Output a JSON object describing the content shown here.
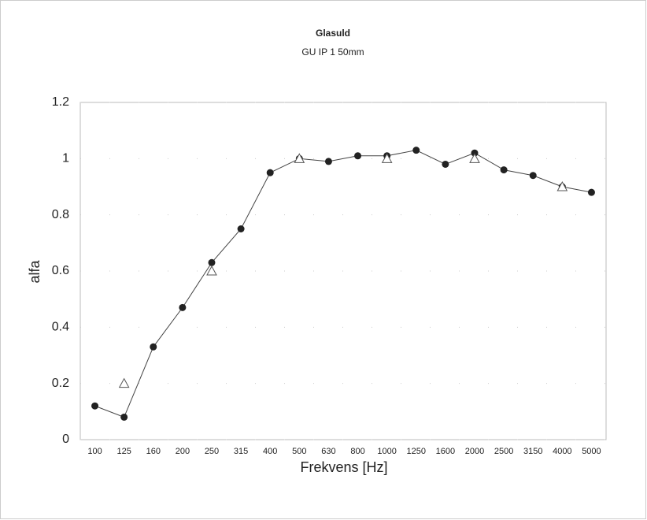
{
  "chart_data": {
    "type": "line",
    "title": "Glasuld",
    "subtitle": "GU IP 1 50mm",
    "x_label": "Frekvens [Hz]",
    "y_label": "alfa",
    "categories": [
      "100",
      "125",
      "160",
      "200",
      "250",
      "315",
      "400",
      "500",
      "630",
      "800",
      "1000",
      "1250",
      "1600",
      "2000",
      "2500",
      "3150",
      "4000",
      "5000"
    ],
    "series": [
      {
        "color": "#222222",
        "marker": "circle",
        "line": true,
        "values": [
          0.12,
          0.08,
          0.33,
          0.47,
          0.63,
          0.75,
          0.95,
          1.0,
          0.99,
          1.01,
          1.01,
          1.03,
          0.98,
          1.02,
          0.96,
          0.94,
          0.9,
          0.88
        ]
      },
      {
        "color": "#555555",
        "marker": "triangle",
        "line": false,
        "values": [
          null,
          0.2,
          null,
          null,
          0.6,
          null,
          null,
          1.0,
          null,
          null,
          1.0,
          null,
          null,
          1.0,
          null,
          null,
          0.9,
          null
        ]
      }
    ],
    "ylim": [
      0,
      1.2
    ],
    "yticks": [
      0,
      0.2,
      0.4,
      0.6,
      0.8,
      1,
      1.2
    ],
    "grid": true
  }
}
